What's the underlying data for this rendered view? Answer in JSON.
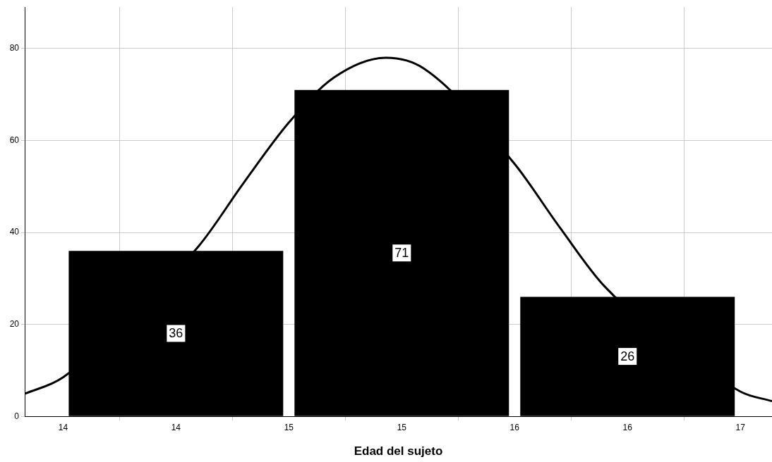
{
  "chart_data": {
    "type": "histogram",
    "xlabel": "Edad del sujeto",
    "xlim": [
      13.33,
      16.64
    ],
    "ylim": [
      0,
      89
    ],
    "xticks": [
      {
        "value": 13.5,
        "label": "14"
      },
      {
        "value": 14,
        "label": "14"
      },
      {
        "value": 14.5,
        "label": "15"
      },
      {
        "value": 15,
        "label": "15"
      },
      {
        "value": 15.5,
        "label": "16"
      },
      {
        "value": 16,
        "label": "16"
      },
      {
        "value": 16.5,
        "label": "17"
      }
    ],
    "yticks": [
      0,
      20,
      40,
      60,
      80
    ],
    "grid": true,
    "legend": false,
    "series": [
      {
        "color": "#000000",
        "bins": [
          13.5,
          14.5,
          15.5,
          16.5
        ],
        "values": [
          36,
          71,
          26
        ],
        "value_labels": [
          "36",
          "71",
          "26"
        ]
      },
      {
        "type": "line",
        "color": "#000000",
        "marker": "none",
        "line_style": "solid",
        "x": [
          13.33,
          13.5,
          13.7,
          13.9,
          14.1,
          14.3,
          14.5,
          14.7,
          14.93,
          15.1,
          15.3,
          15.5,
          15.7,
          15.9,
          16.1,
          16.3,
          16.5,
          16.64
        ],
        "values": [
          4.9,
          8.5,
          null,
          null,
          37.0,
          50.8,
          63.9,
          73.7,
          78,
          75.6,
          null,
          54.9,
          41.1,
          28.2,
          null,
          null,
          5.4,
          3.3
        ]
      }
    ]
  }
}
